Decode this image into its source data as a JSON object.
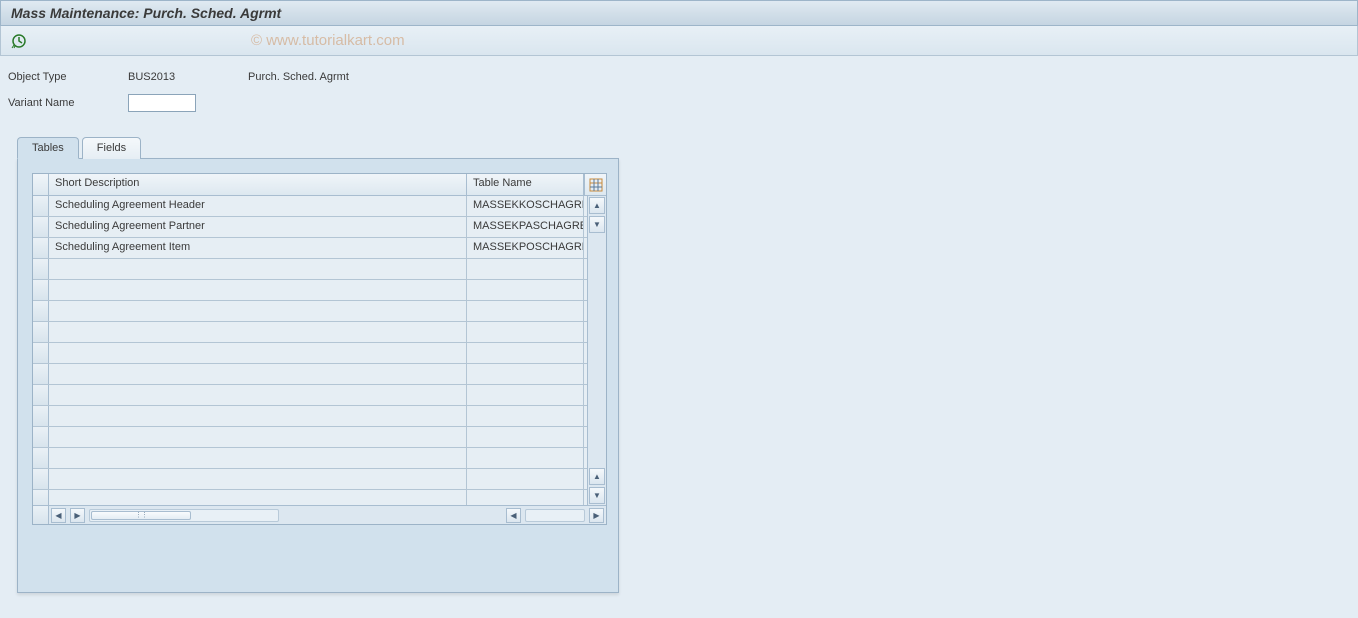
{
  "title": "Mass Maintenance: Purch. Sched. Agrmt",
  "watermark": "© www.tutorialkart.com",
  "form": {
    "object_type_label": "Object Type",
    "object_type_value": "BUS2013",
    "object_type_desc": "Purch. Sched. Agrmt",
    "variant_label": "Variant Name",
    "variant_value": ""
  },
  "tabs": {
    "tables": "Tables",
    "fields": "Fields"
  },
  "grid": {
    "columns": {
      "desc": "Short Description",
      "name": "Table Name"
    },
    "rows": [
      {
        "desc": "Scheduling Agreement Header",
        "name": "MASSEKKOSCHAGREE"
      },
      {
        "desc": "Scheduling Agreement Partner",
        "name": "MASSEKPASCHAGREE"
      },
      {
        "desc": "Scheduling Agreement Item",
        "name": "MASSEKPOSCHAGREE"
      }
    ],
    "empty_row_count": 12
  },
  "colors": {
    "page_bg": "#e4edf4",
    "panel_bg": "#d1e1ed",
    "border": "#9cb3c7",
    "header_grad_top": "#f0f5f9",
    "header_grad_bot": "#dde8f0",
    "cell_bg": "#e6eef4"
  }
}
